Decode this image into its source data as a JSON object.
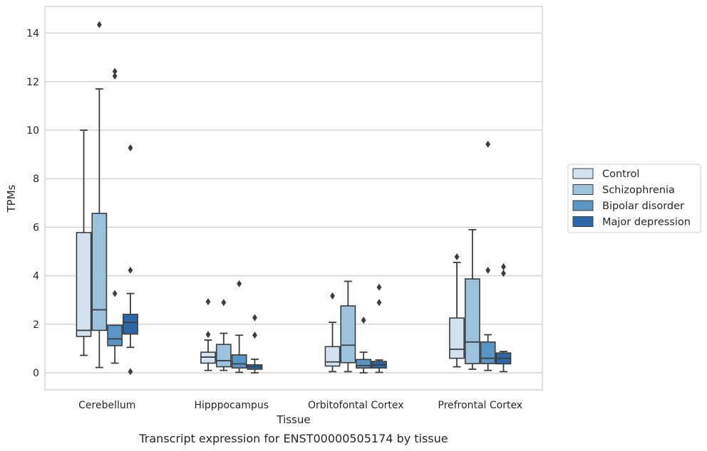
{
  "chart_data": {
    "type": "box",
    "caption": "Transcript expression for ENST00000505174 by tissue",
    "xlabel": "Tissue",
    "ylabel": "TPMs",
    "ylim": [
      -0.7,
      15.1
    ],
    "yticks": [
      0,
      2,
      4,
      6,
      8,
      10,
      12,
      14
    ],
    "grid": "horizontal",
    "legend_position": "right",
    "categories": [
      "Cerebellum",
      "Hipppocampus",
      "Orbitofontal Cortex",
      "Prefrontal Cortex"
    ],
    "series": [
      {
        "name": "Control",
        "color": "#d3e2f1",
        "boxes": [
          {
            "whislo": 0.72,
            "q1": 1.5,
            "med": 1.75,
            "q3": 5.78,
            "whishi": 10.0,
            "fliers": []
          },
          {
            "whislo": 0.1,
            "q1": 0.4,
            "med": 0.65,
            "q3": 0.85,
            "whishi": 1.35,
            "fliers": [
              1.58,
              2.93
            ]
          },
          {
            "whislo": 0.05,
            "q1": 0.28,
            "med": 0.45,
            "q3": 1.08,
            "whishi": 2.08,
            "fliers": [
              3.17
            ]
          },
          {
            "whislo": 0.25,
            "q1": 0.6,
            "med": 0.97,
            "q3": 2.26,
            "whishi": 4.55,
            "fliers": [
              4.78
            ]
          }
        ]
      },
      {
        "name": "Schizophrenia",
        "color": "#9cc2dd",
        "boxes": [
          {
            "whislo": 0.22,
            "q1": 1.75,
            "med": 2.6,
            "q3": 6.57,
            "whishi": 11.7,
            "fliers": [
              14.35
            ]
          },
          {
            "whislo": 0.1,
            "q1": 0.25,
            "med": 0.5,
            "q3": 1.17,
            "whishi": 1.63,
            "fliers": [
              2.9
            ]
          },
          {
            "whislo": 0.05,
            "q1": 0.42,
            "med": 1.14,
            "q3": 2.76,
            "whishi": 3.77,
            "fliers": []
          },
          {
            "whislo": 0.15,
            "q1": 0.38,
            "med": 1.27,
            "q3": 3.87,
            "whishi": 5.9,
            "fliers": []
          }
        ]
      },
      {
        "name": "Bipolar disorder",
        "color": "#5895c5",
        "boxes": [
          {
            "whislo": 0.4,
            "q1": 1.12,
            "med": 1.4,
            "q3": 1.96,
            "whishi": 1.96,
            "fliers": [
              3.27,
              12.23,
              12.42
            ]
          },
          {
            "whislo": 0.02,
            "q1": 0.2,
            "med": 0.37,
            "q3": 0.74,
            "whishi": 1.55,
            "fliers": [
              3.67
            ]
          },
          {
            "whislo": 0.0,
            "q1": 0.2,
            "med": 0.3,
            "q3": 0.55,
            "whishi": 0.85,
            "fliers": [
              2.17
            ]
          },
          {
            "whislo": 0.1,
            "q1": 0.38,
            "med": 0.6,
            "q3": 1.27,
            "whishi": 1.57,
            "fliers": [
              4.23,
              9.42
            ]
          }
        ]
      },
      {
        "name": "Major depression",
        "color": "#2c68a7",
        "boxes": [
          {
            "whislo": 1.05,
            "q1": 1.6,
            "med": 2.08,
            "q3": 2.41,
            "whishi": 3.27,
            "fliers": [
              0.05,
              4.23,
              9.27
            ]
          },
          {
            "whislo": 0.0,
            "q1": 0.15,
            "med": 0.25,
            "q3": 0.33,
            "whishi": 0.56,
            "fliers": [
              1.55,
              2.27
            ]
          },
          {
            "whislo": 0.02,
            "q1": 0.2,
            "med": 0.33,
            "q3": 0.47,
            "whishi": 0.53,
            "fliers": [
              2.9,
              3.53
            ]
          },
          {
            "whislo": 0.05,
            "q1": 0.37,
            "med": 0.6,
            "q3": 0.82,
            "whishi": 0.88,
            "fliers": [
              4.1,
              4.37
            ]
          }
        ]
      }
    ]
  }
}
